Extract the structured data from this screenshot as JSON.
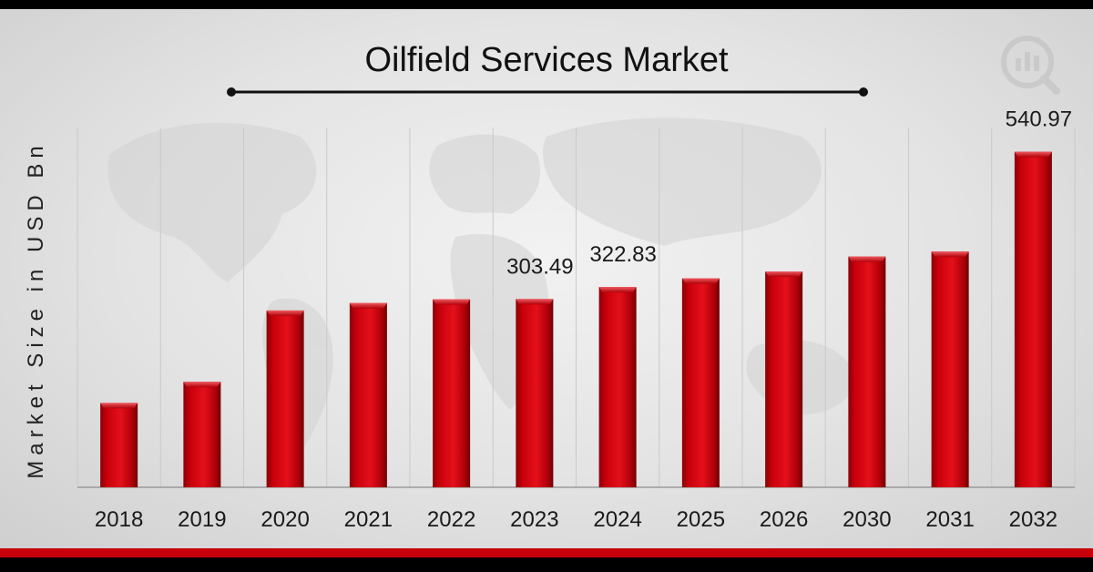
{
  "chart_data": {
    "type": "bar",
    "title": "Oilfield Services Market",
    "xlabel": "",
    "ylabel": "Market Size in USD Bn",
    "categories": [
      "2018",
      "2019",
      "2020",
      "2021",
      "2022",
      "2023",
      "2024",
      "2025",
      "2026",
      "2030",
      "2031",
      "2032"
    ],
    "values": [
      136,
      170,
      285,
      297,
      303,
      303.49,
      322.83,
      337,
      348,
      372,
      380,
      540.97
    ],
    "value_labels": [
      "",
      "",
      "",
      "",
      "",
      "303.49",
      "322.83",
      "",
      "",
      "",
      "",
      "540.97"
    ],
    "ylim": [
      0,
      580
    ],
    "grid": "vertical",
    "legend": "none",
    "colors": {
      "bar": "#c8000b",
      "bar_dark": "#7a0006",
      "bar_light": "#e8343d",
      "background": "#e6e6e6",
      "accent_strip": "#c8000b"
    }
  },
  "logo": {
    "name": "mrfr-logo-icon"
  }
}
